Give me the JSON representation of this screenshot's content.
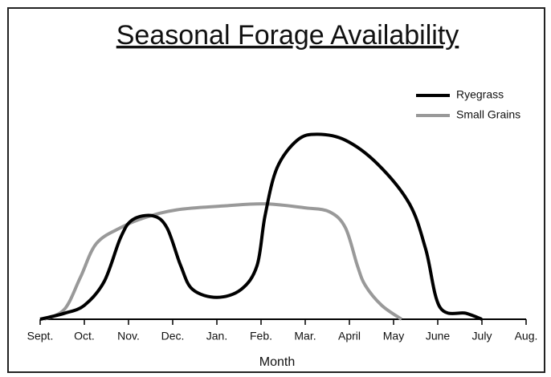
{
  "chart_data": {
    "type": "line",
    "title": "Seasonal Forage Availability",
    "x_label": "Month",
    "xlim": [
      0,
      11
    ],
    "ylim": [
      0,
      100
    ],
    "xticks": [
      {
        "value": 0,
        "label": "Sept."
      },
      {
        "value": 1,
        "label": "Oct."
      },
      {
        "value": 2,
        "label": "Nov."
      },
      {
        "value": 3,
        "label": "Dec."
      },
      {
        "value": 4,
        "label": "Jan."
      },
      {
        "value": 5,
        "label": "Feb."
      },
      {
        "value": 6,
        "label": "Mar."
      },
      {
        "value": 7,
        "label": "April"
      },
      {
        "value": 8,
        "label": "May"
      },
      {
        "value": 9,
        "label": "June"
      },
      {
        "value": 10,
        "label": "July"
      },
      {
        "value": 11,
        "label": "Aug."
      }
    ],
    "legend": "upper right",
    "series": [
      {
        "name": "Ryegrass",
        "color": "#000000",
        "x": [
          0,
          0.55,
          1,
          1.45,
          1.82,
          2.09,
          2.55,
          2.87,
          3.18,
          3.45,
          4,
          4.55,
          4.91,
          5.09,
          5.36,
          5.82,
          6.27,
          6.91,
          7.64,
          8.36,
          8.73,
          9.05,
          9.64,
          10
        ],
        "values": [
          0,
          3,
          7,
          19,
          41,
          50,
          52,
          46,
          27,
          15,
          11,
          15,
          27,
          52,
          76,
          90,
          93,
          90,
          78,
          58,
          35,
          6,
          3,
          0
        ]
      },
      {
        "name": "Small Grains",
        "color": "#999999",
        "x": [
          0.09,
          0.55,
          0.91,
          1.27,
          1.82,
          2.36,
          3.09,
          4.18,
          5.09,
          6,
          6.55,
          6.91,
          7.18,
          7.36,
          7.73,
          8.18
        ],
        "values": [
          0,
          5,
          21,
          38,
          46,
          51,
          55,
          57,
          58,
          56,
          54,
          46,
          27,
          17,
          7,
          0
        ]
      }
    ]
  }
}
